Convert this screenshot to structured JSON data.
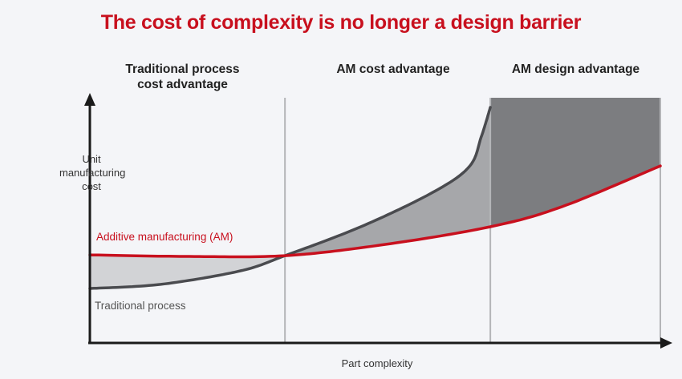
{
  "title": "The cost of complexity is no longer a design barrier",
  "regions": [
    {
      "label_line1": "Traditional process",
      "label_line2": "cost advantage"
    },
    {
      "label_line1": "AM cost advantage"
    },
    {
      "label_line1": "AM design advantage"
    }
  ],
  "chart_data": {
    "type": "line",
    "title": "The cost of complexity is no longer a design barrier",
    "xlabel": "Part complexity",
    "ylabel_lines": [
      "Unit",
      "manufacturing",
      "cost"
    ],
    "xlim": [
      0,
      100
    ],
    "ylim": [
      0,
      100
    ],
    "region_boundaries": [
      34.2,
      70.2,
      100
    ],
    "series": [
      {
        "name": "Additive manufacturing (AM)",
        "color": "#c8101e",
        "points": [
          [
            0,
            35.9
          ],
          [
            16.6,
            35.3
          ],
          [
            34.2,
            35.6
          ],
          [
            51.8,
            40.2
          ],
          [
            70.2,
            47.4
          ],
          [
            82.8,
            55.6
          ],
          [
            100,
            72.2
          ]
        ]
      },
      {
        "name": "Traditional process",
        "color": "#4a4b4f",
        "points": [
          [
            0,
            22.2
          ],
          [
            12.4,
            23.9
          ],
          [
            26.4,
            29.4
          ],
          [
            34.2,
            35.6
          ],
          [
            47.5,
            47.4
          ],
          [
            60.1,
            61.4
          ],
          [
            66.5,
            71.9
          ],
          [
            68.6,
            84
          ],
          [
            70.2,
            96.1
          ]
        ]
      }
    ],
    "fills": {
      "traditional_advantage": "#d2d3d6",
      "am_cost_advantage": "#a6a7aa",
      "am_design_advantage": "#7c7d80"
    }
  }
}
